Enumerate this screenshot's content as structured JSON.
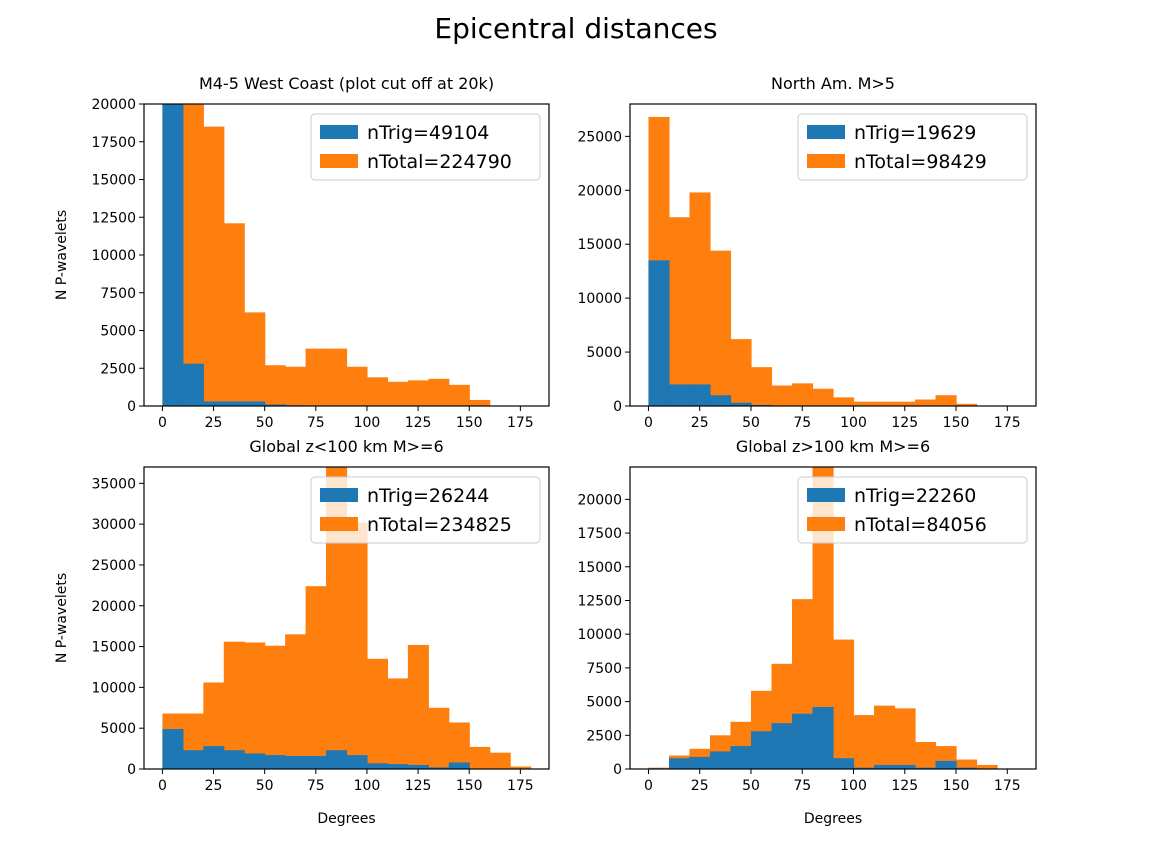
{
  "figure": {
    "title": "Epicentral distances",
    "colors": {
      "trig": "#1f77b4",
      "total": "#ff7f0e",
      "axis": "#000000"
    }
  },
  "chart_data": [
    {
      "type": "bar",
      "title": "M4-5 West Coast (plot cut off at 20k)",
      "xlabel": "",
      "ylabel": "N P-wavelets",
      "xlim": [
        -9,
        189
      ],
      "ylim": [
        0,
        20000
      ],
      "bin_edges": [
        0,
        10,
        20,
        30,
        40,
        50,
        60,
        70,
        80,
        90,
        100,
        110,
        120,
        130,
        140,
        150,
        160,
        170,
        180
      ],
      "xticks": [
        0,
        25,
        50,
        75,
        100,
        125,
        150,
        175
      ],
      "yticks": [
        0,
        2500,
        5000,
        7500,
        10000,
        12500,
        15000,
        17500,
        20000
      ],
      "legend": {
        "placement": "top-right"
      },
      "series": [
        {
          "name": "nTotal=224790",
          "key": "total",
          "values": [
            20000,
            20000,
            18500,
            12100,
            6200,
            2700,
            2600,
            3800,
            3800,
            2600,
            1900,
            1600,
            1700,
            1800,
            1400,
            400,
            0,
            0
          ]
        },
        {
          "name": "nTrig=49104",
          "key": "trig",
          "values": [
            20000,
            2800,
            300,
            300,
            300,
            100,
            50,
            30,
            30,
            10,
            0,
            0,
            0,
            0,
            0,
            0,
            0,
            0
          ]
        }
      ]
    },
    {
      "type": "bar",
      "title": "North Am. M>5",
      "xlabel": "",
      "ylabel": "",
      "xlim": [
        -9,
        189
      ],
      "ylim": [
        0,
        28000
      ],
      "bin_edges": [
        0,
        10,
        20,
        30,
        40,
        50,
        60,
        70,
        80,
        90,
        100,
        110,
        120,
        130,
        140,
        150,
        160,
        170,
        180
      ],
      "xticks": [
        0,
        25,
        50,
        75,
        100,
        125,
        150,
        175
      ],
      "yticks": [
        0,
        5000,
        10000,
        15000,
        20000,
        25000
      ],
      "legend": {
        "placement": "top-right"
      },
      "series": [
        {
          "name": "nTotal=98429",
          "key": "total",
          "values": [
            26800,
            17500,
            19800,
            14400,
            6200,
            3600,
            1900,
            2100,
            1600,
            800,
            400,
            400,
            400,
            600,
            1000,
            200,
            0,
            0
          ]
        },
        {
          "name": "nTrig=19629",
          "key": "trig",
          "values": [
            13500,
            2000,
            2000,
            1000,
            300,
            100,
            50,
            30,
            20,
            10,
            0,
            0,
            0,
            0,
            0,
            0,
            0,
            0
          ]
        }
      ]
    },
    {
      "type": "bar",
      "title": "Global z<100 km M>=6",
      "xlabel": "Degrees",
      "ylabel": "N P-wavelets",
      "xlim": [
        -9,
        189
      ],
      "ylim": [
        0,
        37000
      ],
      "bin_edges": [
        0,
        10,
        20,
        30,
        40,
        50,
        60,
        70,
        80,
        90,
        100,
        110,
        120,
        130,
        140,
        150,
        160,
        170,
        180
      ],
      "xticks": [
        0,
        25,
        50,
        75,
        100,
        125,
        150,
        175
      ],
      "yticks": [
        0,
        5000,
        10000,
        15000,
        20000,
        25000,
        30000,
        35000
      ],
      "legend": {
        "placement": "top-right"
      },
      "series": [
        {
          "name": "nTotal=234825",
          "key": "total",
          "values": [
            6800,
            6800,
            10600,
            15600,
            15500,
            15100,
            16500,
            22400,
            37000,
            30200,
            13500,
            11100,
            15200,
            7500,
            5700,
            2700,
            2000,
            300
          ]
        },
        {
          "name": "nTrig=26244",
          "key": "trig",
          "values": [
            4900,
            2300,
            2800,
            2300,
            1900,
            1700,
            1600,
            1600,
            2300,
            1700,
            700,
            600,
            500,
            200,
            800,
            0,
            0,
            0
          ]
        }
      ]
    },
    {
      "type": "bar",
      "title": "Global z>100 km M>=6",
      "xlabel": "Degrees",
      "ylabel": "",
      "xlim": [
        -9,
        189
      ],
      "ylim": [
        0,
        22400
      ],
      "bin_edges": [
        0,
        10,
        20,
        30,
        40,
        50,
        60,
        70,
        80,
        90,
        100,
        110,
        120,
        130,
        140,
        150,
        160,
        170,
        180
      ],
      "xticks": [
        0,
        25,
        50,
        75,
        100,
        125,
        150,
        175
      ],
      "yticks": [
        0,
        2500,
        5000,
        7500,
        10000,
        12500,
        15000,
        17500,
        20000
      ],
      "legend": {
        "placement": "top-right"
      },
      "series": [
        {
          "name": "nTotal=84056",
          "key": "total",
          "values": [
            100,
            1000,
            1500,
            2500,
            3500,
            5800,
            7800,
            12600,
            22400,
            9600,
            4000,
            4700,
            4500,
            2000,
            1700,
            700,
            300,
            0
          ]
        },
        {
          "name": "nTrig=22260",
          "key": "trig",
          "values": [
            50,
            800,
            900,
            1300,
            1700,
            2800,
            3400,
            4100,
            4600,
            800,
            100,
            300,
            300,
            100,
            600,
            100,
            0,
            0
          ]
        }
      ]
    }
  ]
}
